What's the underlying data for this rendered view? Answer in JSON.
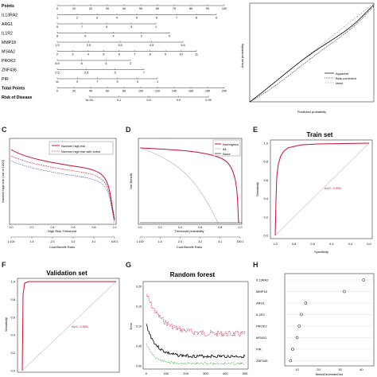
{
  "nomogram": {
    "rows": [
      {
        "label": "Points",
        "bold": true,
        "ticks": [
          "0",
          "10",
          "20",
          "30",
          "40",
          "50",
          "60",
          "70",
          "80",
          "90",
          "100"
        ]
      },
      {
        "label": "IL13RA2",
        "ticks": [
          "1",
          "2",
          "3",
          "4",
          "5",
          "6",
          "7",
          "8",
          "9"
        ]
      },
      {
        "label": "ARG1",
        "ticks": [
          "9",
          "7",
          "5",
          "3",
          "1"
        ]
      },
      {
        "label": "IL1R2",
        "ticks": [
          "8",
          "6",
          "4",
          "2",
          "0"
        ]
      },
      {
        "label": "MMP18",
        "ticks": [
          "1.5",
          "2.5",
          "3.5",
          "4.5",
          "5.5"
        ]
      },
      {
        "label": "MS4A2",
        "ticks": [
          "2",
          "3",
          "4",
          "5",
          "6",
          "7",
          "8",
          "9",
          "10",
          "11"
        ]
      },
      {
        "label": "PROK2",
        "ticks": [
          "8.5",
          "6",
          "4",
          "2"
        ]
      },
      {
        "label": "ZNF436",
        "ticks": [
          "2.5",
          "3.5",
          "5",
          "7"
        ]
      },
      {
        "label": "PIR",
        "ticks": [
          "11",
          "9",
          "7",
          "5",
          "3",
          "1"
        ]
      },
      {
        "label": "Total Points",
        "bold": true,
        "ticks": [
          "0",
          "20",
          "40",
          "60",
          "80",
          "100",
          "120",
          "140",
          "160",
          "180",
          "200"
        ]
      },
      {
        "label": "Risk of Disease",
        "bold": true,
        "ticks": [
          "1e-04",
          "0.1",
          "0.5",
          "0.9",
          "0.99"
        ]
      }
    ]
  },
  "calibration": {
    "ylabel": "Actual probability",
    "xlabel": "Predicted probability",
    "ticks": [
      "0.0",
      "0.2",
      "0.4",
      "0.6",
      "0.8",
      "1.0"
    ],
    "legend": [
      "Apparent",
      "Bias-corrected",
      "Ideal"
    ]
  },
  "panel_c": {
    "label": "C",
    "ylabel": "Number high risk (out of 1000)",
    "xlabel1": "High Risk Threshold",
    "xlabel2": "Cost:Benefit Ratio",
    "yticks": [
      "0",
      "200",
      "400",
      "600",
      "800",
      "1000"
    ],
    "xticks": [
      "0.0",
      "0.2",
      "0.4",
      "0.6",
      "0.8",
      "1.0"
    ],
    "ratio_ticks": [
      "1:100",
      "1:4",
      "2:3",
      "3:2",
      "4:1",
      "100:1"
    ],
    "legend": [
      "Number high risk",
      "Number high risk with event"
    ]
  },
  "panel_d": {
    "label": "D",
    "ylabel": "Net Benefit",
    "xlabel1": "Threshold probability",
    "xlabel2": "Cost:Benefit Ratio",
    "xticks": [
      "0.0",
      "0.2",
      "0.4",
      "0.6",
      "0.8",
      "1.0"
    ],
    "ratio_ticks": [
      "1:100",
      "1:4",
      "2:3",
      "3:2",
      "4:1",
      "100:1"
    ],
    "legend": [
      "Nomogram",
      "All",
      "None"
    ]
  },
  "panel_e": {
    "label": "E",
    "title": "Train set",
    "auc": "AUC: 0.955",
    "xlabel": "Specificity",
    "ylabel": "Sensitivity",
    "xticks": [
      "1.0",
      "0.8",
      "0.6",
      "0.4",
      "0.2",
      "0.0"
    ],
    "yticks": [
      "0.0",
      "0.2",
      "0.4",
      "0.6",
      "0.8",
      "1.0"
    ]
  },
  "panel_f": {
    "label": "F",
    "title": "Validation set",
    "auc": "AUC: 0.985",
    "ylabel": "Sensitivity",
    "xticks": [
      "1.0",
      "0.8",
      "0.6",
      "0.4",
      "0.2",
      "0.0"
    ],
    "yticks": [
      "0.0",
      "0.2",
      "0.4",
      "0.6",
      "0.8",
      "1.0"
    ]
  },
  "panel_g": {
    "label": "G",
    "title": "Random forest",
    "ylabel": "Error",
    "xticks": [
      "0",
      "100",
      "200",
      "300",
      "400",
      "500"
    ],
    "yticks": [
      "0.00",
      "0.05",
      "0.10",
      "0.15",
      "0.20"
    ]
  },
  "panel_h": {
    "label": "H",
    "xlabel": "MeanDecreaseGini",
    "xticks": [
      "10",
      "20",
      "30",
      "40"
    ],
    "genes": [
      "IL13RA2",
      "MMP18",
      "ARG1",
      "IL1R2",
      "PROK2",
      "MS4A2",
      "PIR",
      "ZNF436"
    ],
    "values": [
      41,
      32,
      14,
      12,
      11,
      10,
      8,
      7
    ]
  },
  "colors": {
    "red": "#c8102e",
    "grey": "#888888",
    "black": "#000000"
  }
}
